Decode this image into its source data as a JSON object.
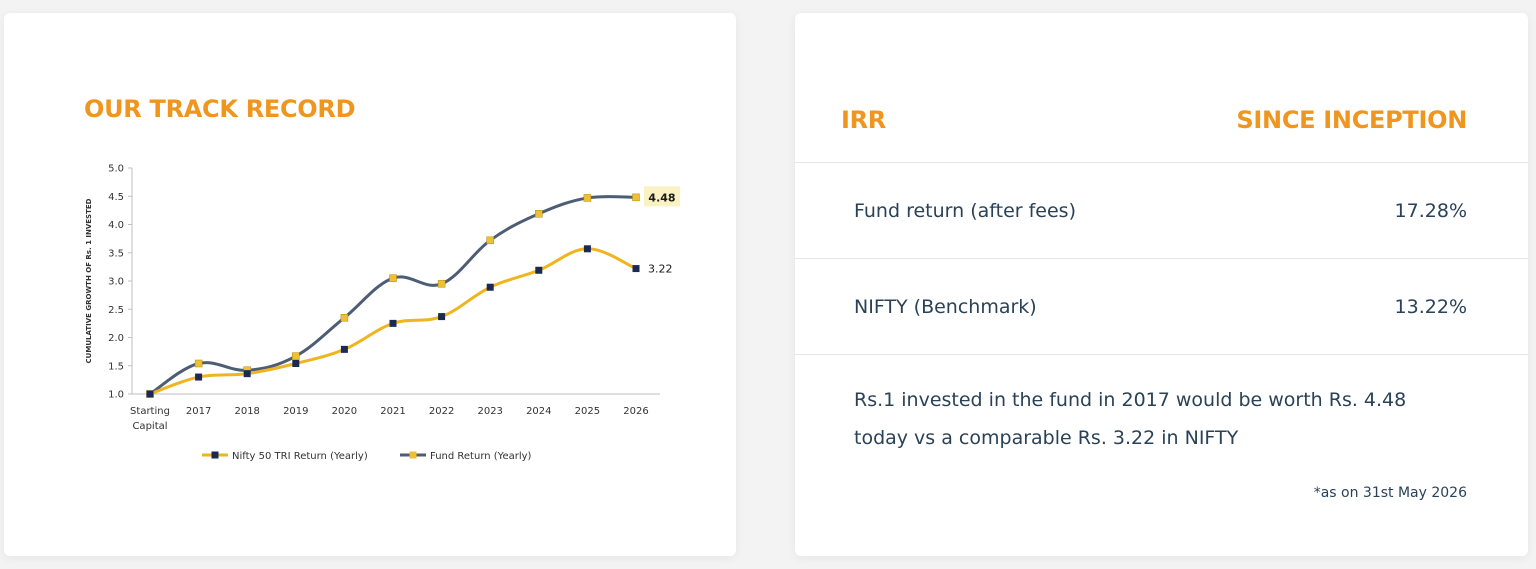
{
  "track_record": {
    "title": "OUR TRACK RECORD"
  },
  "chart_data": {
    "type": "line",
    "title": "",
    "ylabel": "CUMULATIVE GROWTH OF Rs. 1 INVESTED",
    "xlabel": "",
    "ylim": [
      1.0,
      5.0
    ],
    "yticks": [
      "1.0",
      "1.5",
      "2.0",
      "2.5",
      "3.0",
      "3.5",
      "4.0",
      "4.5",
      "5.0"
    ],
    "categories": [
      "Starting Capital",
      "2017",
      "2018",
      "2019",
      "2020",
      "2021",
      "2022",
      "2023",
      "2024",
      "2025",
      "2026"
    ],
    "series": [
      {
        "name": "Nifty 50 TRI Return (Yearly)",
        "line_color": "#f0b41e",
        "marker_color": "#1b2a55",
        "values": [
          1.0,
          1.3,
          1.36,
          1.54,
          1.79,
          2.25,
          2.37,
          2.89,
          3.19,
          3.57,
          3.22
        ],
        "end_label": "3.22"
      },
      {
        "name": "Fund Return (Yearly)",
        "line_color": "#4d5d74",
        "marker_color": "#f0c033",
        "values": [
          1.0,
          1.54,
          1.42,
          1.67,
          2.35,
          3.05,
          2.95,
          3.72,
          4.19,
          4.47,
          4.48
        ],
        "end_label": "4.48"
      }
    ],
    "legend_position": "bottom",
    "grid": false
  },
  "irr": {
    "header_left": "IRR",
    "header_right": "SINCE INCEPTION",
    "rows": [
      {
        "label": "Fund return (after fees)",
        "value": "17.28%"
      },
      {
        "label": "NIFTY (Benchmark)",
        "value": "13.22%"
      }
    ],
    "summary_line1": "Rs.1 invested in the fund in 2017 would be worth Rs. 4.48",
    "summary_line2": "today vs a comparable Rs. 3.22 in NIFTY",
    "note": "*as on 31st May 2026"
  }
}
